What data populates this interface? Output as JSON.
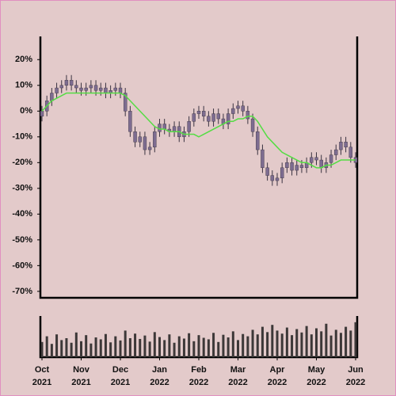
{
  "chart_data": {
    "type": "candlestick",
    "categories": [
      "Oct 2021",
      null,
      null,
      null,
      null,
      null,
      null,
      null,
      "Nov 2021",
      null,
      null,
      null,
      null,
      null,
      null,
      null,
      "Dec 2021",
      null,
      null,
      null,
      null,
      null,
      null,
      null,
      "Jan 2022",
      null,
      null,
      null,
      null,
      null,
      null,
      null,
      "Feb 2022",
      null,
      null,
      null,
      null,
      null,
      null,
      null,
      "Mar 2022",
      null,
      null,
      null,
      null,
      null,
      null,
      null,
      "Apr 2022",
      null,
      null,
      null,
      null,
      null,
      null,
      null,
      "May 2022",
      null,
      null,
      null,
      null,
      null,
      null,
      null,
      "Jun 2022"
    ],
    "open": [
      -2,
      0,
      4,
      7,
      9,
      10,
      12,
      10,
      9,
      8,
      9,
      10,
      8,
      9,
      7,
      8,
      9,
      7,
      0,
      -8,
      -12,
      -10,
      -15,
      -14,
      -8,
      -5,
      -7,
      -8,
      -6,
      -10,
      -8,
      -4,
      -1,
      0,
      -2,
      -4,
      -1,
      -3,
      -5,
      -1,
      1,
      2,
      0,
      -3,
      -8,
      -15,
      -22,
      -25,
      -27,
      -26,
      -22,
      -20,
      -23,
      -21,
      -22,
      -20,
      -18,
      -19,
      -22,
      -20,
      -17,
      -15,
      -12,
      -14,
      -18
    ],
    "high": [
      2,
      6,
      9,
      11,
      12,
      14,
      14,
      12,
      11,
      11,
      12,
      12,
      11,
      11,
      10,
      11,
      11,
      9,
      2,
      -6,
      -8,
      -8,
      -12,
      -6,
      -3,
      -3,
      -5,
      -4,
      -4,
      -6,
      -2,
      1,
      2,
      2,
      0,
      1,
      1,
      -1,
      1,
      3,
      4,
      4,
      2,
      -1,
      -6,
      -13,
      -20,
      -23,
      -24,
      -20,
      -18,
      -18,
      -19,
      -19,
      -18,
      -16,
      -16,
      -17,
      -18,
      -15,
      -13,
      -10,
      -10,
      -12,
      -16
    ],
    "low": [
      -4,
      -2,
      2,
      5,
      7,
      8,
      8,
      7,
      6,
      6,
      7,
      6,
      6,
      5,
      5,
      6,
      5,
      -2,
      -10,
      -14,
      -14,
      -17,
      -17,
      -16,
      -10,
      -9,
      -10,
      -10,
      -12,
      -12,
      -10,
      -6,
      -3,
      -4,
      -6,
      -6,
      -5,
      -7,
      -7,
      -3,
      -1,
      -2,
      -5,
      -10,
      -17,
      -24,
      -27,
      -29,
      -29,
      -28,
      -24,
      -25,
      -25,
      -24,
      -24,
      -22,
      -21,
      -24,
      -24,
      -22,
      -19,
      -17,
      -16,
      -20,
      -22
    ],
    "close": [
      0,
      4,
      7,
      9,
      10,
      12,
      10,
      9,
      8,
      9,
      10,
      8,
      9,
      7,
      8,
      9,
      7,
      0,
      -8,
      -12,
      -10,
      -15,
      -14,
      -8,
      -5,
      -7,
      -8,
      -6,
      -10,
      -8,
      -4,
      -1,
      0,
      -2,
      -4,
      -1,
      -3,
      -5,
      -1,
      1,
      2,
      0,
      -3,
      -8,
      -15,
      -22,
      -25,
      -27,
      -26,
      -22,
      -20,
      -23,
      -21,
      -22,
      -20,
      -18,
      -19,
      -22,
      -20,
      -17,
      -15,
      -12,
      -14,
      -18,
      -20
    ],
    "moving_average": [
      0,
      2,
      4,
      5,
      6,
      7,
      7,
      7,
      7,
      7,
      7,
      7,
      7,
      7,
      7,
      7,
      7,
      6,
      4,
      2,
      0,
      -2,
      -4,
      -6,
      -7,
      -7,
      -8,
      -8,
      -8,
      -9,
      -9,
      -9,
      -10,
      -9,
      -8,
      -7,
      -6,
      -5,
      -4,
      -4,
      -3,
      -3,
      -2,
      -2,
      -4,
      -7,
      -10,
      -12,
      -14,
      -16,
      -17,
      -18,
      -19,
      -20,
      -20,
      -21,
      -22,
      -22,
      -21,
      -21,
      -20,
      -19,
      -19,
      -19,
      -19
    ],
    "volume": [
      40,
      55,
      35,
      60,
      45,
      50,
      38,
      65,
      42,
      58,
      36,
      52,
      47,
      61,
      39,
      55,
      44,
      70,
      50,
      62,
      48,
      57,
      41,
      66,
      53,
      45,
      60,
      38,
      55,
      49,
      63,
      42,
      58,
      51,
      47,
      64,
      40,
      59,
      52,
      68,
      45,
      61,
      55,
      72,
      60,
      80,
      66,
      85,
      70,
      62,
      78,
      58,
      74,
      65,
      82,
      60,
      76,
      68,
      88,
      57,
      72,
      64,
      80,
      70,
      92
    ],
    "ylim": [
      -72.5,
      29
    ],
    "yticks": [
      {
        "value": 20,
        "label": "20%"
      },
      {
        "value": 10,
        "label": "10%"
      },
      {
        "value": 0,
        "label": "0%"
      },
      {
        "value": -10,
        "label": "-10%"
      },
      {
        "value": -20,
        "label": "-20%"
      },
      {
        "value": -30,
        "label": "-30%"
      },
      {
        "value": -40,
        "label": "-40%"
      },
      {
        "value": -50,
        "label": "-50%"
      },
      {
        "value": -60,
        "label": "-60%"
      },
      {
        "value": -70,
        "label": "-70%"
      }
    ],
    "volume_lim": [
      0,
      100
    ],
    "candle_color": "#7d6c90",
    "wick_color": "#3a3340",
    "ma_color": "#55dd44",
    "volume_color": "#3d3838"
  }
}
